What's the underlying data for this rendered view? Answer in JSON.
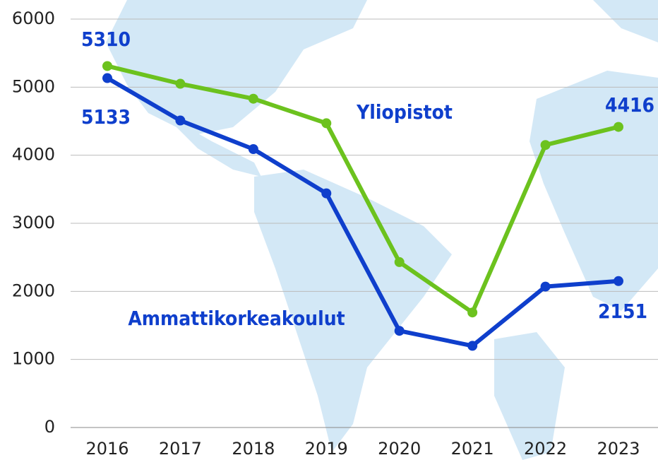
{
  "chart_data": {
    "type": "line",
    "x": [
      2016,
      2017,
      2018,
      2019,
      2020,
      2021,
      2022,
      2023
    ],
    "series": [
      {
        "name": "Yliopistot",
        "color": "#6cc21e",
        "values": [
          5310,
          5050,
          4830,
          4470,
          2430,
          1690,
          4150,
          4416
        ]
      },
      {
        "name": "Ammattikorkeakoulut",
        "color": "#0f3fcc",
        "values": [
          5133,
          4510,
          4090,
          3440,
          1420,
          1200,
          2070,
          2151
        ]
      }
    ],
    "xlim": [
      2016,
      2023
    ],
    "xticks": [
      2016,
      2017,
      2018,
      2019,
      2020,
      2021,
      2022,
      2023
    ],
    "ylim": [
      0,
      6000
    ],
    "yticks": [
      0,
      1000,
      2000,
      3000,
      4000,
      5000,
      6000
    ],
    "grid": true
  }
}
